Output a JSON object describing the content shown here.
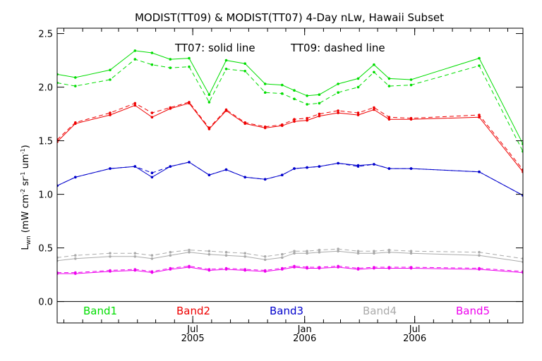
{
  "chart_data": {
    "type": "line",
    "title": "MODIST(TT09) & MODIST(TT07) 4-Day nLw, Hawaii Subset",
    "annotation_left": "TT07: solid line",
    "annotation_right": "TT09: dashed line",
    "ylabel_main": "L",
    "ylabel_sub": "wn",
    "ylabel_units": "(mW cm",
    "ylabel_exp1": "-2",
    "ylabel_mid1": " sr",
    "ylabel_exp2": "-1",
    "ylabel_mid2": " um",
    "ylabel_exp3": "-1",
    "ylabel_close": ")",
    "ylim": [
      -0.2,
      2.55
    ],
    "yticks": [
      "0.0",
      "0.5",
      "1.0",
      "1.5",
      "2.0",
      "2.5"
    ],
    "ytick_values": [
      0.0,
      0.5,
      1.0,
      1.5,
      2.0,
      2.5
    ],
    "xlim": [
      "2004-11-20",
      "2006-12-26"
    ],
    "xticks": [
      {
        "date": "2005-07-01",
        "top": "Jul",
        "bottom": "2005"
      },
      {
        "date": "2006-01-01",
        "top": "Jan",
        "bottom": "2006"
      },
      {
        "date": "2006-07-01",
        "top": "Jul",
        "bottom": "2006"
      }
    ],
    "grid": false,
    "x": [
      "2004-11-20",
      "2004-12-20",
      "2005-02-15",
      "2005-03-28",
      "2005-04-25",
      "2005-05-25",
      "2005-06-25",
      "2005-07-28",
      "2005-08-25",
      "2005-09-25",
      "2005-10-28",
      "2005-11-25",
      "2005-12-15",
      "2006-01-05",
      "2006-01-25",
      "2006-02-25",
      "2006-03-30",
      "2006-04-25",
      "2006-05-20",
      "2006-06-25",
      "2006-10-15",
      "2006-12-26"
    ],
    "series": [
      {
        "name": "Band1",
        "color": "#00dd00",
        "tt07": [
          2.12,
          2.09,
          2.16,
          2.34,
          2.32,
          2.26,
          2.27,
          1.93,
          2.25,
          2.22,
          2.03,
          2.02,
          1.97,
          1.92,
          1.93,
          2.03,
          2.08,
          2.21,
          2.08,
          2.07,
          2.27,
          1.47
        ],
        "tt09": [
          2.04,
          2.01,
          2.07,
          2.26,
          2.21,
          2.18,
          2.19,
          1.86,
          2.17,
          2.15,
          1.95,
          1.94,
          1.89,
          1.84,
          1.85,
          1.95,
          2.0,
          2.14,
          2.01,
          2.02,
          2.2,
          1.4
        ]
      },
      {
        "name": "Band2",
        "color": "#ee0000",
        "tt07": [
          1.49,
          1.66,
          1.74,
          1.83,
          1.72,
          1.8,
          1.85,
          1.61,
          1.78,
          1.66,
          1.62,
          1.64,
          1.68,
          1.69,
          1.73,
          1.76,
          1.74,
          1.79,
          1.7,
          1.7,
          1.72,
          1.21
        ],
        "tt09": [
          1.51,
          1.67,
          1.76,
          1.85,
          1.76,
          1.81,
          1.86,
          1.62,
          1.79,
          1.67,
          1.63,
          1.65,
          1.7,
          1.71,
          1.75,
          1.78,
          1.76,
          1.81,
          1.72,
          1.71,
          1.74,
          1.23
        ]
      },
      {
        "name": "Band3",
        "color": "#0000cc",
        "tt07": [
          1.08,
          1.16,
          1.24,
          1.26,
          1.16,
          1.26,
          1.3,
          1.18,
          1.23,
          1.16,
          1.14,
          1.18,
          1.24,
          1.25,
          1.26,
          1.29,
          1.27,
          1.28,
          1.24,
          1.24,
          1.21,
          0.99
        ],
        "tt09": [
          1.08,
          1.16,
          1.24,
          1.26,
          1.2,
          1.26,
          1.3,
          1.18,
          1.23,
          1.16,
          1.14,
          1.18,
          1.24,
          1.25,
          1.26,
          1.29,
          1.26,
          1.28,
          1.24,
          1.24,
          1.21,
          0.99
        ]
      },
      {
        "name": "Band4",
        "color": "#aaaaaa",
        "tt07": [
          0.38,
          0.4,
          0.42,
          0.42,
          0.4,
          0.43,
          0.46,
          0.44,
          0.43,
          0.42,
          0.39,
          0.41,
          0.45,
          0.45,
          0.46,
          0.47,
          0.45,
          0.45,
          0.46,
          0.45,
          0.43,
          0.37
        ],
        "tt09": [
          0.41,
          0.43,
          0.45,
          0.45,
          0.43,
          0.46,
          0.48,
          0.47,
          0.46,
          0.45,
          0.42,
          0.44,
          0.47,
          0.47,
          0.48,
          0.49,
          0.47,
          0.47,
          0.48,
          0.47,
          0.46,
          0.4
        ]
      },
      {
        "name": "Band5",
        "color": "#ee00ee",
        "tt07": [
          0.26,
          0.26,
          0.28,
          0.29,
          0.27,
          0.3,
          0.32,
          0.29,
          0.3,
          0.29,
          0.28,
          0.3,
          0.32,
          0.31,
          0.31,
          0.32,
          0.3,
          0.31,
          0.31,
          0.31,
          0.3,
          0.27
        ],
        "tt09": [
          0.27,
          0.27,
          0.29,
          0.3,
          0.28,
          0.31,
          0.33,
          0.3,
          0.31,
          0.3,
          0.29,
          0.31,
          0.33,
          0.32,
          0.32,
          0.33,
          0.31,
          0.32,
          0.32,
          0.32,
          0.31,
          0.28
        ]
      }
    ]
  }
}
